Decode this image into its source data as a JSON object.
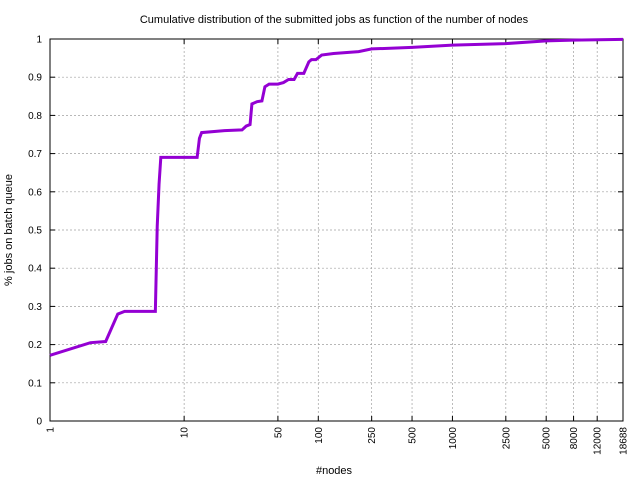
{
  "chart_data": {
    "type": "line",
    "title": "Cumulative distribution of the submitted jobs as function of the number of nodes",
    "xlabel": "#nodes",
    "ylabel": "% jobs on batch queue",
    "x_scale": "log",
    "xlim": [
      1,
      18688
    ],
    "ylim": [
      0,
      1
    ],
    "grid": true,
    "x_ticks": [
      1,
      10,
      50,
      100,
      250,
      500,
      1000,
      2500,
      5000,
      8000,
      12000,
      18688
    ],
    "y_ticks": [
      0,
      0.1,
      0.2,
      0.3,
      0.4,
      0.5,
      0.6,
      0.7,
      0.8,
      0.9,
      1
    ],
    "colors": {
      "series": "#9400d3"
    },
    "series": [
      {
        "name": "",
        "points": [
          [
            1,
            0.172
          ],
          [
            2,
            0.205
          ],
          [
            2.6,
            0.208
          ],
          [
            3.2,
            0.28
          ],
          [
            3.6,
            0.287
          ],
          [
            6.1,
            0.287
          ],
          [
            6.3,
            0.51
          ],
          [
            6.5,
            0.62
          ],
          [
            6.7,
            0.69
          ],
          [
            12.5,
            0.69
          ],
          [
            13,
            0.74
          ],
          [
            13.5,
            0.755
          ],
          [
            20,
            0.76
          ],
          [
            27,
            0.762
          ],
          [
            29,
            0.772
          ],
          [
            31,
            0.776
          ],
          [
            32,
            0.83
          ],
          [
            35,
            0.836
          ],
          [
            38,
            0.838
          ],
          [
            40,
            0.875
          ],
          [
            43,
            0.882
          ],
          [
            50,
            0.882
          ],
          [
            55,
            0.886
          ],
          [
            60,
            0.894
          ],
          [
            66,
            0.894
          ],
          [
            70,
            0.91
          ],
          [
            78,
            0.91
          ],
          [
            85,
            0.94
          ],
          [
            89,
            0.946
          ],
          [
            96,
            0.946
          ],
          [
            106,
            0.958
          ],
          [
            130,
            0.962
          ],
          [
            200,
            0.967
          ],
          [
            250,
            0.974
          ],
          [
            500,
            0.978
          ],
          [
            1000,
            0.984
          ],
          [
            2500,
            0.988
          ],
          [
            5000,
            0.995
          ],
          [
            8000,
            0.997
          ],
          [
            18688,
            0.999
          ]
        ]
      }
    ]
  }
}
